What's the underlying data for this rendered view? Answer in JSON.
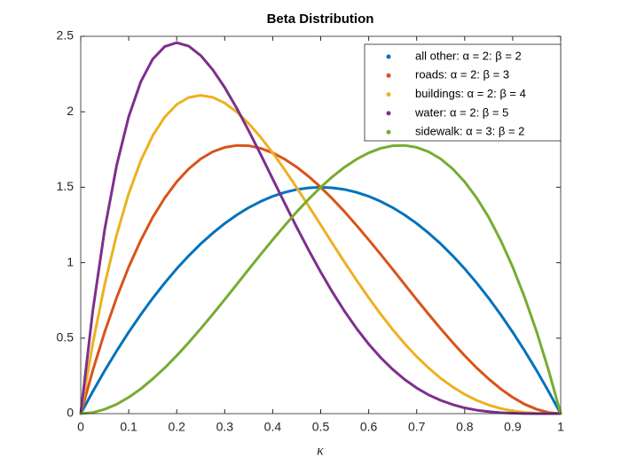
{
  "chart_data": {
    "type": "line",
    "title": "Beta Distribution",
    "x_label": "κ",
    "x": [
      0,
      0.025,
      0.05,
      0.075,
      0.1,
      0.125,
      0.15,
      0.175,
      0.2,
      0.225,
      0.25,
      0.275,
      0.3,
      0.325,
      0.35,
      0.375,
      0.4,
      0.425,
      0.45,
      0.475,
      0.5,
      0.525,
      0.55,
      0.575,
      0.6,
      0.625,
      0.65,
      0.675,
      0.7,
      0.725,
      0.75,
      0.775,
      0.8,
      0.825,
      0.85,
      0.875,
      0.9,
      0.925,
      0.95,
      0.975,
      1
    ],
    "series": [
      {
        "name": "all other: α = 2: β = 2",
        "color": "#0072BD",
        "values": [
          0,
          0.146,
          0.285,
          0.416,
          0.54,
          0.656,
          0.765,
          0.866,
          0.96,
          1.046,
          1.125,
          1.196,
          1.26,
          1.316,
          1.365,
          1.406,
          1.44,
          1.466,
          1.485,
          1.496,
          1.5,
          1.496,
          1.485,
          1.466,
          1.44,
          1.406,
          1.365,
          1.316,
          1.26,
          1.196,
          1.125,
          1.046,
          0.96,
          0.866,
          0.765,
          0.656,
          0.54,
          0.416,
          0.285,
          0.146,
          0
        ]
      },
      {
        "name": "roads: α = 2: β = 3",
        "color": "#D95319",
        "values": [
          0,
          0.285,
          0.542,
          0.77,
          0.972,
          1.148,
          1.301,
          1.429,
          1.536,
          1.622,
          1.688,
          1.735,
          1.764,
          1.777,
          1.775,
          1.758,
          1.728,
          1.686,
          1.634,
          1.571,
          1.5,
          1.421,
          1.337,
          1.246,
          1.152,
          1.055,
          0.956,
          0.856,
          0.756,
          0.658,
          0.563,
          0.471,
          0.384,
          0.303,
          0.23,
          0.164,
          0.108,
          0.062,
          0.029,
          0.007,
          0
        ]
      },
      {
        "name": "buildings: α = 2: β = 4",
        "color": "#EDB120",
        "values": [
          0,
          0.463,
          0.857,
          1.187,
          1.458,
          1.675,
          1.842,
          1.965,
          2.048,
          2.095,
          2.109,
          2.096,
          2.058,
          1.999,
          1.922,
          1.831,
          1.728,
          1.616,
          1.497,
          1.375,
          1.25,
          1.125,
          1.002,
          0.883,
          0.768,
          0.659,
          0.557,
          0.463,
          0.378,
          0.302,
          0.234,
          0.177,
          0.128,
          0.088,
          0.057,
          0.034,
          0.018,
          0.008,
          0.002,
          0,
          0
        ]
      },
      {
        "name": "water: α = 2: β = 5",
        "color": "#7E2F8E",
        "values": [
          0,
          0.678,
          1.222,
          1.647,
          1.968,
          2.198,
          2.349,
          2.432,
          2.458,
          2.435,
          2.373,
          2.279,
          2.161,
          2.024,
          1.874,
          1.717,
          1.555,
          1.394,
          1.235,
          1.083,
          0.938,
          0.802,
          0.677,
          0.563,
          0.461,
          0.371,
          0.293,
          0.226,
          0.17,
          0.124,
          0.088,
          0.06,
          0.038,
          0.023,
          0.013,
          0.006,
          0.003,
          0.001,
          0,
          0,
          0
        ]
      },
      {
        "name": "sidewalk: α = 3: β = 2",
        "color": "#77AC30",
        "values": [
          0,
          0.007,
          0.029,
          0.062,
          0.108,
          0.164,
          0.23,
          0.303,
          0.384,
          0.471,
          0.563,
          0.658,
          0.756,
          0.856,
          0.956,
          1.055,
          1.152,
          1.246,
          1.337,
          1.421,
          1.5,
          1.571,
          1.634,
          1.686,
          1.728,
          1.758,
          1.775,
          1.777,
          1.764,
          1.735,
          1.688,
          1.622,
          1.536,
          1.429,
          1.301,
          1.148,
          0.972,
          0.77,
          0.542,
          0.285,
          0
        ]
      }
    ],
    "xlim": [
      0,
      1
    ],
    "xticks": [
      0,
      0.1,
      0.2,
      0.3,
      0.4,
      0.5,
      0.6,
      0.7,
      0.8,
      0.9,
      1
    ],
    "ylim": [
      0,
      2.5
    ],
    "yticks": [
      0,
      0.5,
      1,
      1.5,
      2,
      2.5
    ],
    "grid": false,
    "legend": "northeast"
  }
}
